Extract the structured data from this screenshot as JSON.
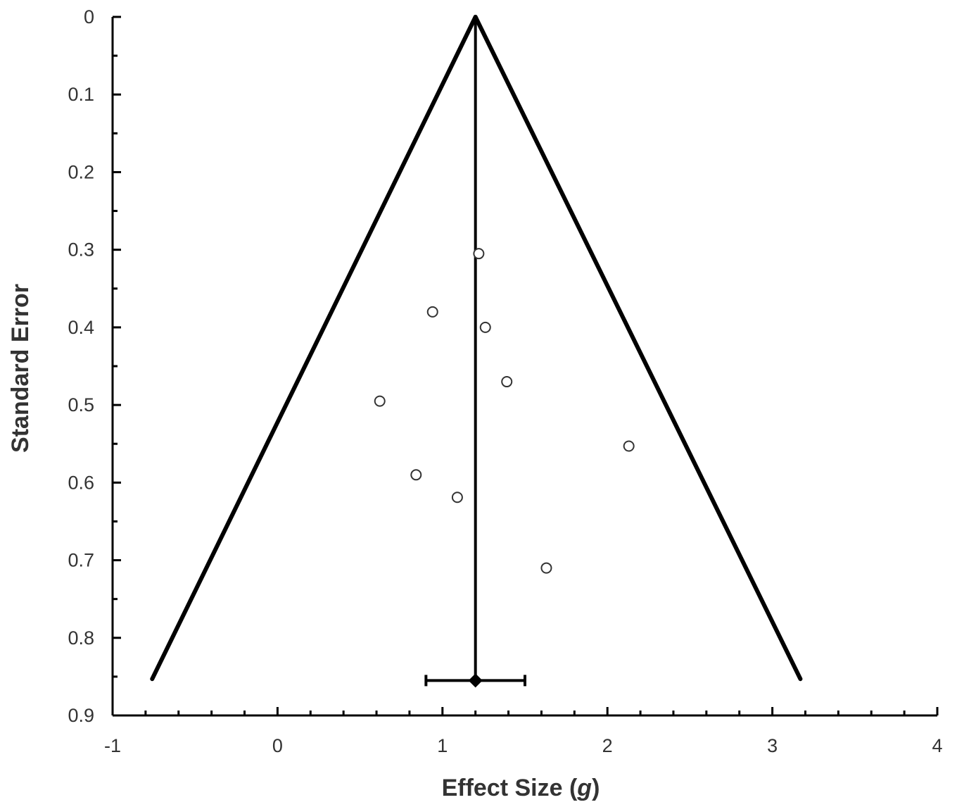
{
  "chart_data": {
    "type": "scatter",
    "subtype": "funnel-plot",
    "title": "",
    "xlabel_main": "Effect Size (",
    "xlabel_italic": "g",
    "xlabel_close": ")",
    "ylabel": "Standard Error",
    "xlim": [
      -1,
      4
    ],
    "ylim": [
      0,
      0.9
    ],
    "y_inverted": true,
    "x_ticks": [
      -1,
      0,
      1,
      2,
      3,
      4
    ],
    "y_ticks": [
      0,
      0.1,
      0.2,
      0.3,
      0.4,
      0.5,
      0.6,
      0.7,
      0.8,
      0.9
    ],
    "x_ticks_labels": [
      "-1",
      "0",
      "1",
      "2",
      "3",
      "4"
    ],
    "y_ticks_labels": [
      "0",
      "0.1",
      "0.2",
      "0.3",
      "0.4",
      "0.5",
      "0.6",
      "0.7",
      "0.8",
      "0.9"
    ],
    "grid": false,
    "legend": "none",
    "points": [
      {
        "x": 1.22,
        "y": 0.305
      },
      {
        "x": 0.94,
        "y": 0.38
      },
      {
        "x": 1.26,
        "y": 0.4
      },
      {
        "x": 1.39,
        "y": 0.47
      },
      {
        "x": 0.62,
        "y": 0.495
      },
      {
        "x": 2.13,
        "y": 0.553
      },
      {
        "x": 0.84,
        "y": 0.59
      },
      {
        "x": 1.09,
        "y": 0.619
      },
      {
        "x": 1.63,
        "y": 0.71
      }
    ],
    "pooled_effect": 1.2,
    "pooled_ci": [
      0.9,
      1.5
    ],
    "pooled_marker_se": 0.855,
    "funnel": {
      "apex": {
        "x": 1.2,
        "y": 0.0
      },
      "left_base": {
        "x": -0.76,
        "y": 0.853
      },
      "right_base": {
        "x": 3.17,
        "y": 0.853
      }
    },
    "colors": {
      "axis": "#000000",
      "funnel": "#000000",
      "points_stroke": "#333333",
      "points_fill": "#ffffff",
      "text": "#333333"
    }
  }
}
